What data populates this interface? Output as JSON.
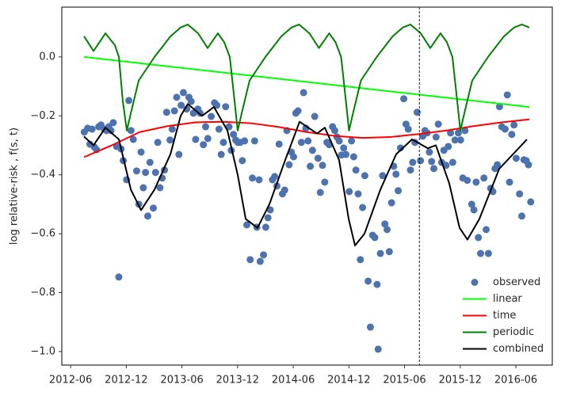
{
  "chart_data": {
    "type": "line",
    "y_label": "log relative-risk , f(s, t)",
    "xlim": [
      2012.338,
      2016.744
    ],
    "ylim": [
      -1.046,
      0.169
    ],
    "xticks": [
      {
        "value": 2012.417,
        "label": "2012-06"
      },
      {
        "value": 2012.917,
        "label": "2012-12"
      },
      {
        "value": 2013.417,
        "label": "2013-06"
      },
      {
        "value": 2013.917,
        "label": "2013-12"
      },
      {
        "value": 2014.417,
        "label": "2014-06"
      },
      {
        "value": 2014.917,
        "label": "2014-12"
      },
      {
        "value": 2015.417,
        "label": "2015-06"
      },
      {
        "value": 2015.917,
        "label": "2015-12"
      },
      {
        "value": 2016.417,
        "label": "2016-06"
      }
    ],
    "yticks": [
      {
        "value": 0.0,
        "label": "0.0"
      },
      {
        "value": -0.2,
        "label": "−0.2"
      },
      {
        "value": -0.4,
        "label": "−0.4"
      },
      {
        "value": -0.6,
        "label": "−0.6"
      },
      {
        "value": -0.8,
        "label": "−0.8"
      },
      {
        "value": -1.0,
        "label": "−1.0"
      }
    ],
    "vline_x": 2015.55,
    "legend": "lower right",
    "series": [
      {
        "name": "observed",
        "type": "scatter",
        "color": "#4c72b0",
        "x": [
          2012.54,
          2012.57,
          2012.59,
          2012.61,
          2012.63,
          2012.65,
          2012.67,
          2012.69,
          2012.72,
          2012.74,
          2012.76,
          2012.78,
          2012.8,
          2012.83,
          2012.85,
          2012.87,
          2012.89,
          2012.92,
          2012.94,
          2012.96,
          2012.98,
          2013.01,
          2013.03,
          2013.05,
          2013.07,
          2013.09,
          2013.11,
          2013.13,
          2013.16,
          2013.18,
          2013.2,
          2013.22,
          2013.24,
          2013.26,
          2013.28,
          2013.31,
          2013.33,
          2013.35,
          2013.37,
          2013.39,
          2013.41,
          2013.43,
          2013.46,
          2013.48,
          2013.5,
          2013.52,
          2013.54,
          2013.56,
          2013.58,
          2013.61,
          2013.63,
          2013.65,
          2013.68,
          2013.71,
          2013.73,
          2013.75,
          2013.77,
          2013.79,
          2013.81,
          2013.84,
          2013.86,
          2013.88,
          2013.9,
          2013.92,
          2013.94,
          2013.96,
          2013.98,
          2014.0,
          2014.03,
          2014.05,
          2014.07,
          2014.09,
          2014.11,
          2014.12,
          2014.15,
          2014.17,
          2014.19,
          2014.21,
          2014.23,
          2014.25,
          2014.27,
          2014.29,
          2014.32,
          2014.34,
          2014.36,
          2014.38,
          2014.4,
          2014.42,
          2014.44,
          2014.46,
          2014.49,
          2014.51,
          2014.53,
          2014.55,
          2014.57,
          2014.59,
          2014.61,
          2014.64,
          2014.66,
          2014.68,
          2014.7,
          2014.72,
          2014.74,
          2014.77,
          2014.79,
          2014.81,
          2014.83,
          2014.85,
          2014.87,
          2014.89,
          2014.92,
          2014.94,
          2014.96,
          2014.98,
          2015.0,
          2015.02,
          2015.04,
          2015.06,
          2015.09,
          2015.11,
          2015.13,
          2015.15,
          2015.17,
          2015.18,
          2015.2,
          2015.22,
          2015.24,
          2015.26,
          2015.28,
          2015.3,
          2015.32,
          2015.34,
          2015.36,
          2015.38,
          2015.41,
          2015.43,
          2015.45,
          2015.47,
          2015.49,
          2015.51,
          2015.53,
          2015.56,
          2015.58,
          2015.6,
          2015.62,
          2015.64,
          2015.66,
          2015.68,
          2015.7,
          2015.72,
          2015.75,
          2015.77,
          2015.79,
          2015.81,
          2015.83,
          2015.85,
          2015.87,
          2015.9,
          2015.92,
          2015.94,
          2015.96,
          2015.98,
          2016.02,
          2016.04,
          2016.06,
          2016.08,
          2016.1,
          2016.13,
          2016.15,
          2016.17,
          2016.19,
          2016.21,
          2016.23,
          2016.25,
          2016.27,
          2016.29,
          2016.32,
          2016.34,
          2016.36,
          2016.38,
          2016.4,
          2016.42,
          2016.45,
          2016.47,
          2016.49,
          2016.51,
          2016.53,
          2016.55
        ],
        "values": [
          -0.255,
          -0.242,
          -0.296,
          -0.245,
          -0.306,
          -0.315,
          -0.237,
          -0.231,
          -0.245,
          -0.25,
          -0.237,
          -0.25,
          -0.223,
          -0.304,
          -0.747,
          -0.312,
          -0.352,
          -0.417,
          -0.148,
          -0.25,
          -0.28,
          -0.387,
          -0.5,
          -0.323,
          -0.444,
          -0.392,
          -0.54,
          -0.358,
          -0.513,
          -0.392,
          -0.29,
          -0.444,
          -0.411,
          -0.384,
          -0.188,
          -0.282,
          -0.245,
          -0.183,
          -0.137,
          -0.331,
          -0.164,
          -0.121,
          -0.177,
          -0.137,
          -0.151,
          -0.191,
          -0.28,
          -0.177,
          -0.191,
          -0.298,
          -0.237,
          -0.277,
          -0.202,
          -0.156,
          -0.164,
          -0.245,
          -0.331,
          -0.29,
          -0.169,
          -0.237,
          -0.317,
          -0.263,
          -0.282,
          -0.29,
          -0.29,
          -0.352,
          -0.285,
          -0.57,
          -0.688,
          -0.411,
          -0.285,
          -0.578,
          -0.417,
          -0.694,
          -0.672,
          -0.578,
          -0.546,
          -0.519,
          -0.417,
          -0.406,
          -0.438,
          -0.296,
          -0.465,
          -0.452,
          -0.25,
          -0.366,
          -0.323,
          -0.339,
          -0.191,
          -0.183,
          -0.29,
          -0.121,
          -0.242,
          -0.285,
          -0.371,
          -0.317,
          -0.202,
          -0.344,
          -0.46,
          -0.368,
          -0.425,
          -0.29,
          -0.298,
          -0.237,
          -0.25,
          -0.272,
          -0.285,
          -0.333,
          -0.309,
          -0.331,
          -0.457,
          -0.285,
          -0.339,
          -0.384,
          -0.465,
          -0.688,
          -0.511,
          -0.403,
          -0.761,
          -0.917,
          -0.605,
          -0.613,
          -0.772,
          -0.992,
          -0.667,
          -0.403,
          -0.567,
          -0.586,
          -0.661,
          -0.495,
          -0.371,
          -0.398,
          -0.454,
          -0.309,
          -0.142,
          -0.228,
          -0.245,
          -0.384,
          -0.358,
          -0.29,
          -0.188,
          -0.352,
          -0.269,
          -0.25,
          -0.258,
          -0.323,
          -0.355,
          -0.379,
          -0.272,
          -0.228,
          -0.358,
          -0.317,
          -0.368,
          -0.304,
          -0.258,
          -0.358,
          -0.282,
          -0.258,
          -0.282,
          -0.411,
          -0.25,
          -0.419,
          -0.5,
          -0.519,
          -0.425,
          -0.613,
          -0.667,
          -0.411,
          -0.586,
          -0.667,
          -0.446,
          -0.457,
          -0.379,
          -0.366,
          -0.169,
          -0.237,
          -0.245,
          -0.129,
          -0.425,
          -0.263,
          -0.231,
          -0.344,
          -0.465,
          -0.54,
          -0.349,
          -0.352,
          -0.366,
          -0.492
        ]
      },
      {
        "name": "linear",
        "type": "line",
        "color": "#00ff00",
        "x": [
          2012.538,
          2016.538
        ],
        "values": [
          0.0,
          -0.17
        ]
      },
      {
        "name": "time",
        "type": "line",
        "color": "#ff0000",
        "x": [
          2012.538,
          2012.788,
          2013.038,
          2013.288,
          2013.538,
          2013.788,
          2014.038,
          2014.288,
          2014.538,
          2014.788,
          2015.038,
          2015.288,
          2015.538,
          2015.788,
          2016.038,
          2016.288,
          2016.538
        ],
        "values": [
          -0.34,
          -0.3,
          -0.255,
          -0.235,
          -0.222,
          -0.22,
          -0.225,
          -0.238,
          -0.255,
          -0.268,
          -0.275,
          -0.272,
          -0.262,
          -0.25,
          -0.235,
          -0.222,
          -0.212
        ]
      },
      {
        "name": "periodic",
        "type": "line",
        "color": "#008000",
        "x": [
          2012.538,
          2012.623,
          2012.73,
          2012.815,
          2012.851,
          2012.886,
          2012.922,
          2012.965,
          2013.029,
          2013.171,
          2013.314,
          2013.406,
          2013.47,
          2013.563,
          2013.648,
          2013.74,
          2013.797,
          2013.847,
          2013.89,
          2013.918,
          2013.961,
          2014.025,
          2014.167,
          2014.31,
          2014.402,
          2014.47,
          2014.563,
          2014.648,
          2014.74,
          2014.797,
          2014.847,
          2014.89,
          2014.918,
          2014.961,
          2015.025,
          2015.167,
          2015.31,
          2015.402,
          2015.47,
          2015.563,
          2015.648,
          2015.74,
          2015.797,
          2015.847,
          2015.89,
          2015.918,
          2015.961,
          2016.025,
          2016.167,
          2016.31,
          2016.402,
          2016.47,
          2016.538
        ],
        "values": [
          0.07,
          0.02,
          0.08,
          0.04,
          0.0,
          -0.15,
          -0.25,
          -0.18,
          -0.08,
          0.0,
          0.07,
          0.1,
          0.11,
          0.08,
          0.03,
          0.08,
          0.05,
          0.0,
          -0.15,
          -0.25,
          -0.18,
          -0.08,
          0.0,
          0.07,
          0.1,
          0.11,
          0.08,
          0.03,
          0.08,
          0.05,
          0.0,
          -0.15,
          -0.25,
          -0.18,
          -0.08,
          0.0,
          0.07,
          0.1,
          0.11,
          0.08,
          0.03,
          0.08,
          0.05,
          0.0,
          -0.15,
          -0.25,
          -0.18,
          -0.08,
          0.0,
          0.07,
          0.1,
          0.11,
          0.1
        ]
      },
      {
        "name": "combined",
        "type": "line",
        "color": "#000000",
        "x": [
          2012.537,
          2012.623,
          2012.73,
          2012.851,
          2012.958,
          2013.05,
          2013.171,
          2013.314,
          2013.406,
          2013.47,
          2013.598,
          2013.705,
          2013.826,
          2013.918,
          2013.99,
          2014.096,
          2014.203,
          2014.345,
          2014.474,
          2014.63,
          2014.701,
          2014.829,
          2014.915,
          2014.972,
          2015.057,
          2015.2,
          2015.342,
          2015.484,
          2015.626,
          2015.698,
          2015.819,
          2015.911,
          2015.982,
          2016.089,
          2016.267,
          2016.516
        ],
        "values": [
          -0.27,
          -0.3,
          -0.24,
          -0.28,
          -0.45,
          -0.52,
          -0.45,
          -0.33,
          -0.2,
          -0.16,
          -0.2,
          -0.17,
          -0.25,
          -0.4,
          -0.55,
          -0.58,
          -0.5,
          -0.35,
          -0.22,
          -0.26,
          -0.24,
          -0.35,
          -0.55,
          -0.64,
          -0.6,
          -0.45,
          -0.33,
          -0.28,
          -0.31,
          -0.3,
          -0.43,
          -0.58,
          -0.62,
          -0.55,
          -0.38,
          -0.28
        ]
      }
    ]
  }
}
